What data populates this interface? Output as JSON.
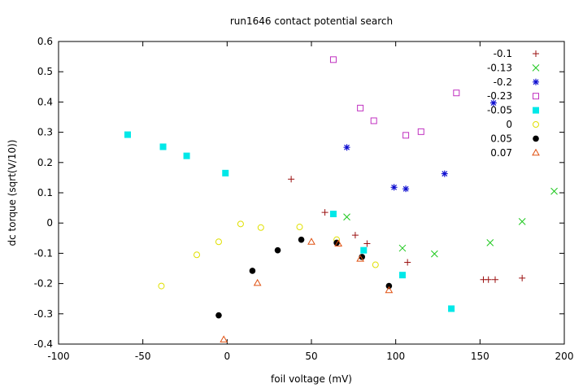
{
  "chart_data": {
    "type": "scatter",
    "title": "run1646 contact potential search",
    "xlabel": "foil voltage (mV)",
    "ylabel": "dc torque (sqrt(V/10))",
    "xlim": [
      -100,
      200
    ],
    "ylim": [
      -0.4,
      0.6
    ],
    "xticks": [
      "-100",
      "-50",
      "0",
      "50",
      "100",
      "150",
      "200"
    ],
    "yticks": [
      "0.6",
      "0.5",
      "0.4",
      "0.3",
      "0.2",
      "0.1",
      "0",
      "-0.1",
      "-0.2",
      "-0.3",
      "-0.4"
    ],
    "legend_position": "top-right",
    "grid": false,
    "series": [
      {
        "name": "-0.1",
        "marker": "plus",
        "color": "#9b1010",
        "points": [
          [
            38,
            0.145
          ],
          [
            58,
            0.035
          ],
          [
            76,
            -0.04
          ],
          [
            83,
            -0.068
          ],
          [
            107,
            -0.13
          ],
          [
            152,
            -0.187
          ],
          [
            155,
            -0.187
          ],
          [
            159,
            -0.187
          ],
          [
            175,
            -0.182
          ]
        ]
      },
      {
        "name": "-0.13",
        "marker": "cross",
        "color": "#1ec81e",
        "points": [
          [
            71,
            0.02
          ],
          [
            104,
            -0.083
          ],
          [
            123,
            -0.102
          ],
          [
            156,
            -0.065
          ],
          [
            175,
            0.005
          ],
          [
            194,
            0.105
          ]
        ]
      },
      {
        "name": "-0.2",
        "marker": "star",
        "color": "#1010d0",
        "points": [
          [
            71,
            0.25
          ],
          [
            99,
            0.118
          ],
          [
            106,
            0.113
          ],
          [
            129,
            0.163
          ],
          [
            158,
            0.397
          ]
        ]
      },
      {
        "name": "-0.23",
        "marker": "square-open",
        "color": "#c030c0",
        "points": [
          [
            63,
            0.54
          ],
          [
            79,
            0.38
          ],
          [
            87,
            0.338
          ],
          [
            106,
            0.29
          ],
          [
            115,
            0.302
          ],
          [
            136,
            0.43
          ]
        ]
      },
      {
        "name": "-0.05",
        "marker": "square-filled",
        "color": "#00e8e8",
        "points": [
          [
            -59,
            0.292
          ],
          [
            -38,
            0.252
          ],
          [
            -24,
            0.222
          ],
          [
            -1,
            0.165
          ],
          [
            63,
            0.03
          ],
          [
            81,
            -0.09
          ],
          [
            104,
            -0.172
          ],
          [
            133,
            -0.283
          ]
        ]
      },
      {
        "name": "0",
        "marker": "circle-open",
        "color": "#e0e000",
        "points": [
          [
            -39,
            -0.208
          ],
          [
            -18,
            -0.105
          ],
          [
            -5,
            -0.062
          ],
          [
            8,
            -0.003
          ],
          [
            20,
            -0.015
          ],
          [
            43,
            -0.013
          ],
          [
            65,
            -0.055
          ],
          [
            88,
            -0.138
          ]
        ]
      },
      {
        "name": "0.05",
        "marker": "circle-filled",
        "color": "#000000",
        "points": [
          [
            -5,
            -0.305
          ],
          [
            15,
            -0.158
          ],
          [
            30,
            -0.09
          ],
          [
            44,
            -0.055
          ],
          [
            65,
            -0.065
          ],
          [
            80,
            -0.112
          ],
          [
            96,
            -0.208
          ]
        ]
      },
      {
        "name": "0.07",
        "marker": "triangle-open",
        "color": "#e05010",
        "points": [
          [
            -2,
            -0.385
          ],
          [
            18,
            -0.198
          ],
          [
            50,
            -0.062
          ],
          [
            66,
            -0.068
          ],
          [
            79,
            -0.118
          ],
          [
            96,
            -0.222
          ]
        ]
      }
    ]
  }
}
